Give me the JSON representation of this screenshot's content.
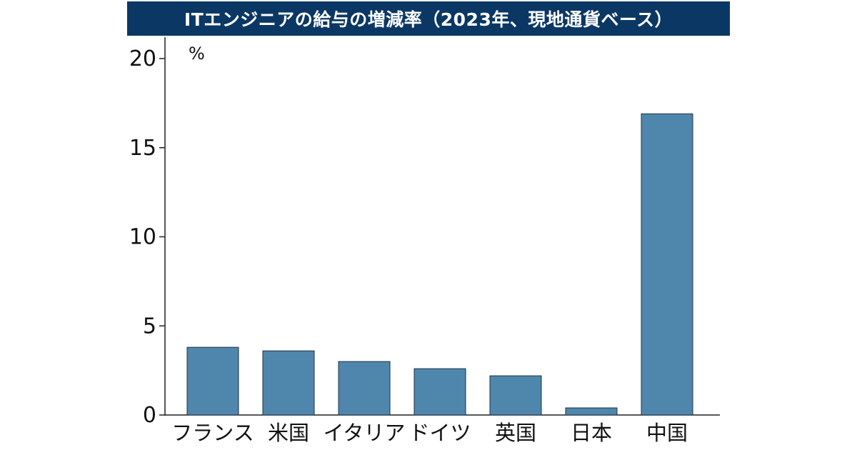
{
  "chart_data": {
    "type": "bar",
    "title": "ITエンジニアの給与の増減率（2023年、現地通貨ベース）",
    "unit": "%",
    "categories": [
      "フランス",
      "米国",
      "イタリア",
      "ドイツ",
      "英国",
      "日本",
      "中国"
    ],
    "values": [
      3.8,
      3.6,
      3.0,
      2.6,
      2.2,
      0.4,
      16.9
    ],
    "yticks": [
      "0",
      "5",
      "10",
      "15",
      "20"
    ],
    "ylim": [
      0,
      20
    ],
    "grid": false,
    "bar_color": "#4f86ac",
    "title_bg_color": "#0b3764"
  }
}
